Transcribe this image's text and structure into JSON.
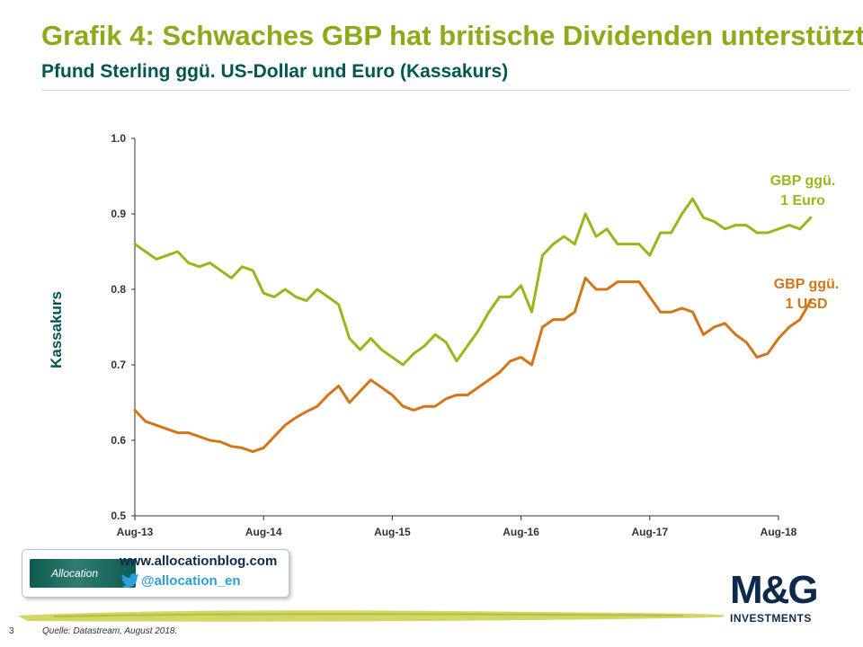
{
  "header": {
    "title": "Grafik 4: Schwaches GBP hat britische Dividenden unterstützt",
    "subtitle": "Pfund Sterling ggü. US-Dollar und Euro (Kassakurs)"
  },
  "colors": {
    "title": "#8cab1a",
    "subtitle": "#00574b",
    "euro_series": "#9cb51b",
    "usd_series": "#d3761a",
    "axis": "#333333",
    "brand_navy": "#0d2a4c"
  },
  "chart_data": {
    "type": "line",
    "ylabel": "Kassakurs",
    "xlabel": "",
    "ylim": [
      0.5,
      1.0
    ],
    "yticks": [
      "0.5",
      "0.6",
      "0.7",
      "0.8",
      "0.9",
      "1.0"
    ],
    "xticks": [
      "Aug-13",
      "Aug-14",
      "Aug-15",
      "Aug-16",
      "Aug-17",
      "Aug-18"
    ],
    "grid": false,
    "x_unit": "months since Aug-13",
    "series": [
      {
        "name": "GBP ggü. 1 Euro",
        "label_lines": [
          "GBP ggü.",
          "1 Euro"
        ],
        "points": [
          [
            0,
            0.86
          ],
          [
            1,
            0.85
          ],
          [
            2,
            0.84
          ],
          [
            3,
            0.845
          ],
          [
            4,
            0.85
          ],
          [
            5,
            0.835
          ],
          [
            6,
            0.83
          ],
          [
            7,
            0.835
          ],
          [
            8,
            0.825
          ],
          [
            9,
            0.815
          ],
          [
            10,
            0.83
          ],
          [
            11,
            0.825
          ],
          [
            12,
            0.795
          ],
          [
            13,
            0.79
          ],
          [
            14,
            0.8
          ],
          [
            15,
            0.79
          ],
          [
            16,
            0.785
          ],
          [
            17,
            0.8
          ],
          [
            18,
            0.79
          ],
          [
            19,
            0.78
          ],
          [
            20,
            0.735
          ],
          [
            21,
            0.72
          ],
          [
            22,
            0.735
          ],
          [
            23,
            0.72
          ],
          [
            24,
            0.71
          ],
          [
            25,
            0.7
          ],
          [
            26,
            0.715
          ],
          [
            27,
            0.725
          ],
          [
            28,
            0.74
          ],
          [
            29,
            0.73
          ],
          [
            30,
            0.705
          ],
          [
            31,
            0.725
          ],
          [
            32,
            0.745
          ],
          [
            33,
            0.77
          ],
          [
            34,
            0.79
          ],
          [
            35,
            0.79
          ],
          [
            36,
            0.805
          ],
          [
            37,
            0.77
          ],
          [
            38,
            0.845
          ],
          [
            39,
            0.86
          ],
          [
            40,
            0.87
          ],
          [
            41,
            0.86
          ],
          [
            42,
            0.9
          ],
          [
            43,
            0.87
          ],
          [
            44,
            0.88
          ],
          [
            45,
            0.86
          ],
          [
            46,
            0.86
          ],
          [
            47,
            0.86
          ],
          [
            48,
            0.845
          ],
          [
            49,
            0.875
          ],
          [
            50,
            0.875
          ],
          [
            51,
            0.9
          ],
          [
            52,
            0.92
          ],
          [
            53,
            0.895
          ],
          [
            54,
            0.89
          ],
          [
            55,
            0.88
          ],
          [
            56,
            0.885
          ],
          [
            57,
            0.885
          ],
          [
            58,
            0.875
          ],
          [
            59,
            0.875
          ],
          [
            60,
            0.88
          ],
          [
            61,
            0.885
          ],
          [
            62,
            0.88
          ],
          [
            63,
            0.895
          ]
        ]
      },
      {
        "name": "GBP ggü. 1 USD",
        "label_lines": [
          "GBP ggü.",
          "1 USD"
        ],
        "points": [
          [
            0,
            0.64
          ],
          [
            1,
            0.625
          ],
          [
            2,
            0.62
          ],
          [
            3,
            0.615
          ],
          [
            4,
            0.61
          ],
          [
            5,
            0.61
          ],
          [
            6,
            0.605
          ],
          [
            7,
            0.6
          ],
          [
            8,
            0.598
          ],
          [
            9,
            0.592
          ],
          [
            10,
            0.59
          ],
          [
            11,
            0.585
          ],
          [
            12,
            0.59
          ],
          [
            13,
            0.605
          ],
          [
            14,
            0.62
          ],
          [
            15,
            0.63
          ],
          [
            16,
            0.638
          ],
          [
            17,
            0.645
          ],
          [
            18,
            0.66
          ],
          [
            19,
            0.672
          ],
          [
            20,
            0.65
          ],
          [
            21,
            0.665
          ],
          [
            22,
            0.68
          ],
          [
            23,
            0.67
          ],
          [
            24,
            0.66
          ],
          [
            25,
            0.645
          ],
          [
            26,
            0.64
          ],
          [
            27,
            0.645
          ],
          [
            28,
            0.645
          ],
          [
            29,
            0.655
          ],
          [
            30,
            0.66
          ],
          [
            31,
            0.66
          ],
          [
            32,
            0.67
          ],
          [
            33,
            0.68
          ],
          [
            34,
            0.69
          ],
          [
            35,
            0.705
          ],
          [
            36,
            0.71
          ],
          [
            37,
            0.7
          ],
          [
            38,
            0.75
          ],
          [
            39,
            0.76
          ],
          [
            40,
            0.76
          ],
          [
            41,
            0.77
          ],
          [
            42,
            0.815
          ],
          [
            43,
            0.8
          ],
          [
            44,
            0.8
          ],
          [
            45,
            0.81
          ],
          [
            46,
            0.81
          ],
          [
            47,
            0.81
          ],
          [
            48,
            0.79
          ],
          [
            49,
            0.77
          ],
          [
            50,
            0.77
          ],
          [
            51,
            0.775
          ],
          [
            52,
            0.77
          ],
          [
            53,
            0.74
          ],
          [
            54,
            0.75
          ],
          [
            55,
            0.755
          ],
          [
            56,
            0.74
          ],
          [
            57,
            0.73
          ],
          [
            58,
            0.71
          ],
          [
            59,
            0.715
          ],
          [
            60,
            0.735
          ],
          [
            61,
            0.75
          ],
          [
            62,
            0.76
          ],
          [
            63,
            0.785
          ]
        ]
      }
    ]
  },
  "social": {
    "logo_text": "Allocation",
    "url": "www.allocationblog.com",
    "twitter_handle": "@allocation_en"
  },
  "brand": {
    "name": "M&G",
    "sub": "INVESTMENTS"
  },
  "footer": {
    "page_number": "3",
    "source": "Quelle: Datastream, August 2018."
  }
}
